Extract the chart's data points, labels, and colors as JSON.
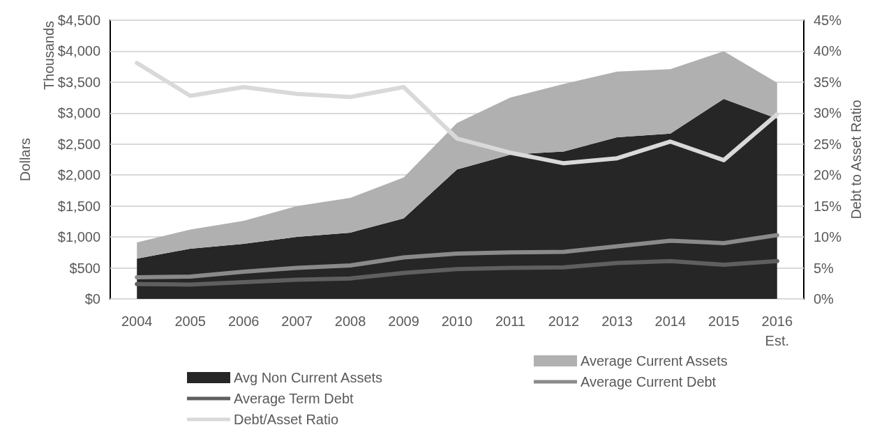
{
  "chart_data": {
    "type": "area",
    "ylabel": "Dollars",
    "y2label": "Debt to Asset Ratio",
    "annotations": [
      "Thousands"
    ],
    "categories": [
      "2004",
      "2005",
      "2006",
      "2007",
      "2008",
      "2009",
      "2010",
      "2011",
      "2012",
      "2013",
      "2014",
      "2015",
      "2016\nEst."
    ],
    "stacked": true,
    "series": [
      {
        "name": "Avg Non Current Assets",
        "color": "#262626",
        "values": [
          650,
          810,
          890,
          1000,
          1070,
          1300,
          2090,
          2330,
          2380,
          2610,
          2670,
          3230,
          2910
        ]
      },
      {
        "name": "Average Current Assets",
        "color": "#b0b0b0",
        "values": [
          260,
          310,
          370,
          500,
          560,
          660,
          750,
          920,
          1090,
          1060,
          1040,
          770,
          580
        ]
      },
      {
        "name": "Average Term Debt",
        "type": "line",
        "color": "#5f5f5f",
        "values": [
          240,
          230,
          270,
          310,
          330,
          420,
          480,
          500,
          510,
          580,
          610,
          550,
          610
        ]
      },
      {
        "name": "Average Current Debt",
        "type": "line",
        "color": "#8a8a8a",
        "values": [
          350,
          360,
          440,
          500,
          540,
          670,
          730,
          750,
          760,
          850,
          940,
          900,
          1030
        ]
      },
      {
        "name": "Debt/Asset Ratio",
        "type": "line",
        "axis": "y2",
        "color": "#d9d9d9",
        "values": [
          38.1,
          32.8,
          34.2,
          33.1,
          32.6,
          34.2,
          25.9,
          23.6,
          21.9,
          22.7,
          25.4,
          22.4,
          29.8
        ]
      }
    ],
    "ylim": [
      0,
      4500
    ],
    "yticks": [
      {
        "value": 0,
        "label": "$0"
      },
      {
        "value": 500,
        "label": "$500"
      },
      {
        "value": 1000,
        "label": "$1,000"
      },
      {
        "value": 1500,
        "label": "$1,500"
      },
      {
        "value": 2000,
        "label": "$2,000"
      },
      {
        "value": 2500,
        "label": "$2,500"
      },
      {
        "value": 3000,
        "label": "$3,000"
      },
      {
        "value": 3500,
        "label": "$3,500"
      },
      {
        "value": 4000,
        "label": "$4,000"
      },
      {
        "value": 4500,
        "label": "$4,500"
      }
    ],
    "y2lim": [
      0,
      45
    ],
    "y2ticks": [
      {
        "value": 0,
        "label": "0%"
      },
      {
        "value": 5,
        "label": "5%"
      },
      {
        "value": 10,
        "label": "10%"
      },
      {
        "value": 15,
        "label": "15%"
      },
      {
        "value": 20,
        "label": "20%"
      },
      {
        "value": 25,
        "label": "25%"
      },
      {
        "value": 30,
        "label": "30%"
      },
      {
        "value": 35,
        "label": "35%"
      },
      {
        "value": 40,
        "label": "40%"
      },
      {
        "value": 45,
        "label": "45%"
      }
    ],
    "grid": "y",
    "legend": "bottom",
    "marker": "none"
  }
}
